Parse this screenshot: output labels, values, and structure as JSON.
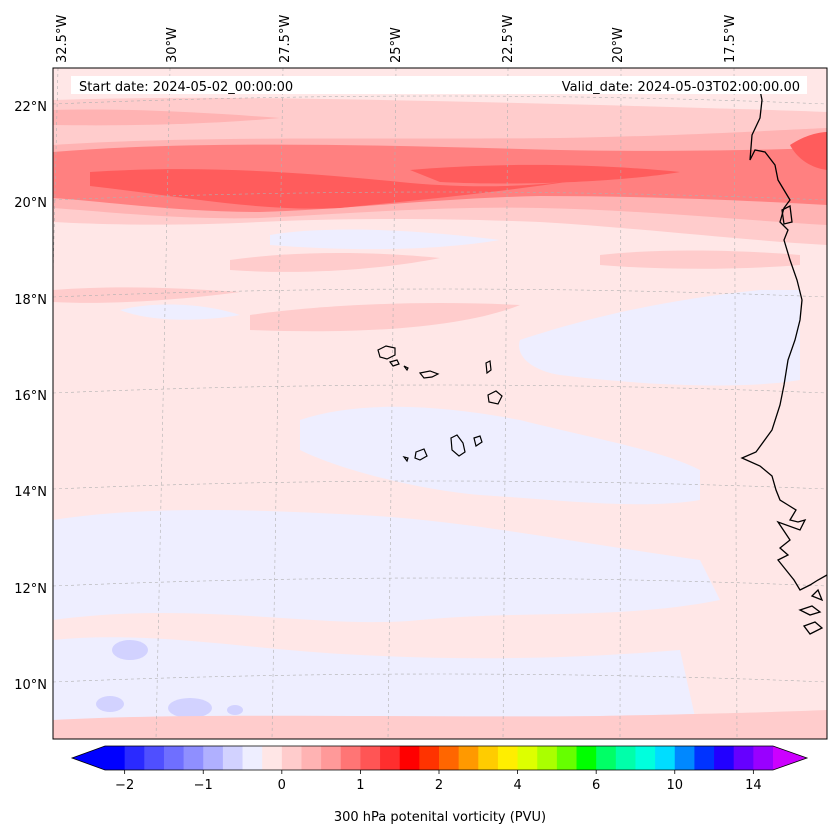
{
  "header": {
    "start_date": "Start date: 2024-05-02_00:00:00",
    "valid_date": "Valid_date: 2024-05-03T02:00:00.00"
  },
  "map": {
    "lon_labels": [
      "32.5°W",
      "30°W",
      "27.5°W",
      "25°W",
      "22.5°W",
      "20°W",
      "17.5°W"
    ],
    "lat_labels": [
      "22°N",
      "20°N",
      "18°N",
      "16°N",
      "14°N",
      "12°N",
      "10°N"
    ]
  },
  "colorbar": {
    "title": "300 hPa potenital vorticity (PVU)",
    "tick_labels": [
      "−2",
      "−1",
      "0",
      "1",
      "2",
      "4",
      "6",
      "10",
      "14"
    ],
    "colors": [
      "#0000ff",
      "#2a2aff",
      "#4f4fff",
      "#6f6fff",
      "#8f8fff",
      "#b0b0ff",
      "#d2d2ff",
      "#eeeeff",
      "#ffe6e6",
      "#ffcccc",
      "#ffb3b3",
      "#ff9999",
      "#ff7575",
      "#ff5555",
      "#ff2e2e",
      "#ff0000",
      "#ff3300",
      "#ff6600",
      "#ff9900",
      "#ffcc00",
      "#ffee00",
      "#ddff00",
      "#aaff00",
      "#66ff00",
      "#00ff00",
      "#00ff66",
      "#00ffaa",
      "#00ffdd",
      "#00ddff",
      "#0088ff",
      "#0033ff",
      "#2200ff",
      "#6600ff",
      "#9900ff"
    ],
    "end_color_low": "#0000ff",
    "end_color_high": "#cc00ff"
  },
  "field_colors": {
    "background": "#ffe7e7",
    "light_blue": "#eeeeff",
    "blue": "#d2d2ff",
    "pink1": "#ffcccc",
    "pink2": "#ffb3b3",
    "red1": "#ff8080",
    "red2": "#ff5c5c"
  }
}
